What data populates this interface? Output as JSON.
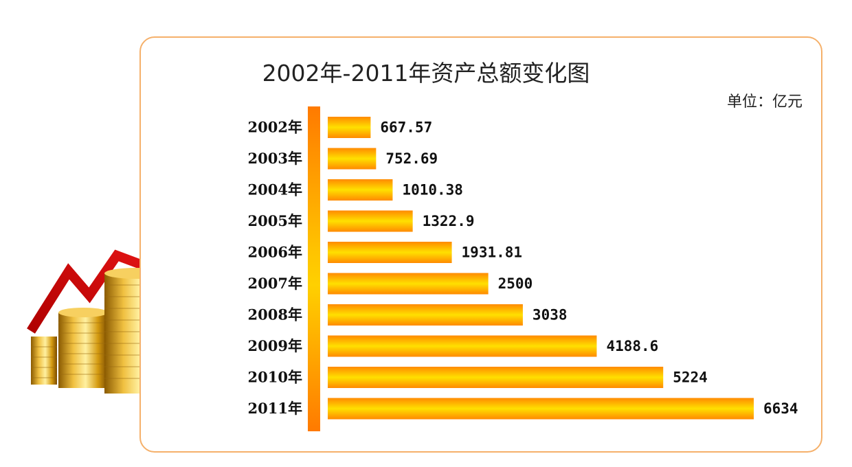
{
  "chart_data": {
    "type": "bar",
    "orientation": "horizontal",
    "title": "2002年-2011年资产总额变化图",
    "unit": "单位：亿元",
    "categories": [
      "2002年",
      "2003年",
      "2004年",
      "2005年",
      "2006年",
      "2007年",
      "2008年",
      "2009年",
      "2010年",
      "2011年"
    ],
    "values": [
      667.57,
      752.69,
      1010.38,
      1322.9,
      1931.81,
      2500,
      3038,
      4188.6,
      5224,
      6634
    ],
    "value_labels": [
      "667.57",
      "752.69",
      "1010.38",
      "1322.9",
      "1931.81",
      "2500",
      "3038",
      "4188.6",
      "5224",
      "6634"
    ],
    "xlim": [
      0,
      6634
    ],
    "grid": false,
    "legend": "none",
    "colors": {
      "bar_edge": "#ff8a00",
      "bar_center": "#ffe000",
      "frame": "#f5b06a"
    }
  },
  "decoration": {
    "image": "gold-coins-with-red-rising-arrow"
  }
}
